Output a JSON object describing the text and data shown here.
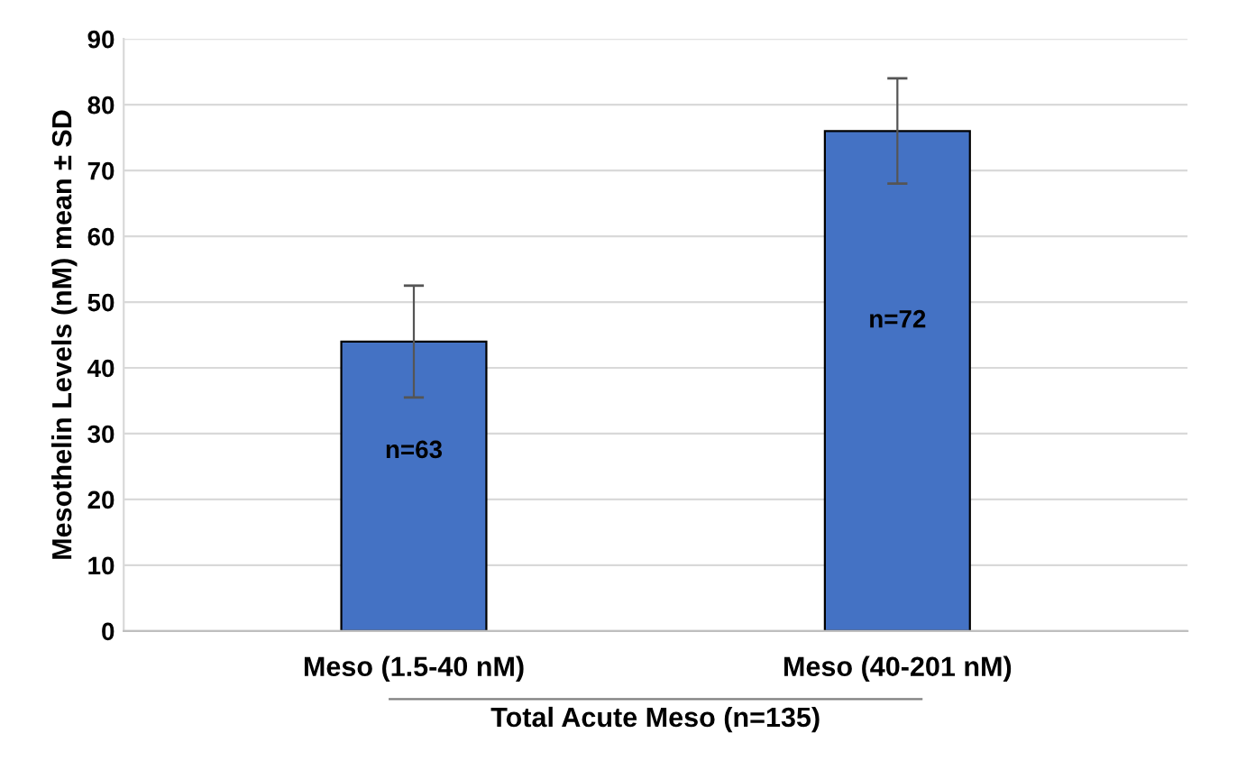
{
  "chart_data": {
    "type": "bar",
    "ylabel": "Mesothelin Levels (nM) mean ± SD",
    "xlabel": "Total Acute Meso (n=135)",
    "categories": [
      "Meso (1.5-40 nM)",
      "Meso (40-201 nM)"
    ],
    "values": [
      44,
      76
    ],
    "errors": [
      [
        35.5,
        52.5
      ],
      [
        68,
        84
      ]
    ],
    "color": "#4472c4",
    "ylim": [
      0,
      90
    ],
    "yticks": [
      0,
      10,
      20,
      30,
      40,
      50,
      60,
      70,
      80,
      90
    ],
    "grid": "y",
    "annotations": [
      "n=63",
      "n=72"
    ]
  }
}
